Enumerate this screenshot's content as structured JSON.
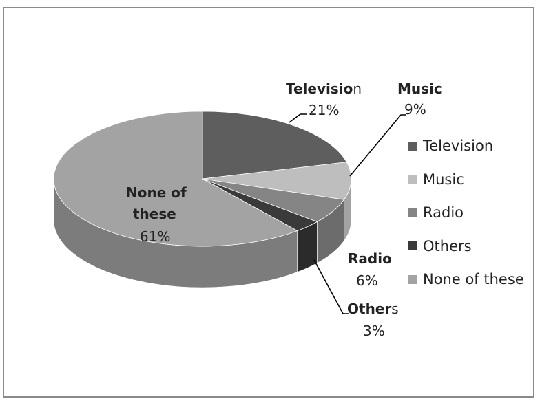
{
  "chart_data": {
    "type": "pie",
    "style": "3d",
    "title": "",
    "slices": [
      {
        "label": "Television",
        "value": 21,
        "pct_text": "21%",
        "color": "#5e5e5e",
        "side_color": "#4a4a4a"
      },
      {
        "label": "Music",
        "value": 9,
        "pct_text": "9%",
        "color": "#bebebe",
        "side_color": "#a3a3a3"
      },
      {
        "label": "Radio",
        "value": 6,
        "pct_text": "6%",
        "color": "#858585",
        "side_color": "#6c6c6c"
      },
      {
        "label": "Others",
        "value": 3,
        "pct_text": "3%",
        "color": "#3a3a3a",
        "side_color": "#2b2b2b"
      },
      {
        "label": "None of these",
        "value": 61,
        "pct_text": "61%",
        "color": "#a3a3a3",
        "side_color": "#7c7c7c"
      }
    ],
    "data_labels": {
      "television": {
        "name_bold": "Televisio",
        "name_rest": "n",
        "value": "21%"
      },
      "music": {
        "name_bold": "Music",
        "name_rest": "",
        "value": "9%"
      },
      "radio": {
        "name_bold": "Radio",
        "name_rest": "",
        "value": "6%"
      },
      "others": {
        "name_bold": "Other",
        "name_rest": "s",
        "value": "3%"
      },
      "none": {
        "name_line1": "None of",
        "name_line2": "these",
        "value": "61%"
      }
    },
    "legend": {
      "placement": "right",
      "items": [
        "Television",
        "Music",
        "Radio",
        "Others",
        "None of these"
      ]
    }
  }
}
